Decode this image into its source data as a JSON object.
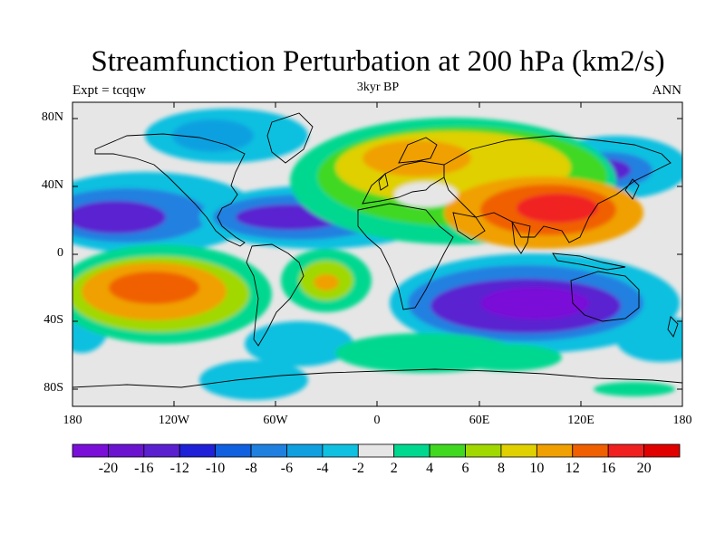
{
  "title": "Streamfunction Perturbation at 200 hPa (km2/s)",
  "subtitle_left": "Expt = tcqqw",
  "subtitle_center": "3kyr BP",
  "subtitle_right": "ANN",
  "y_ticks": [
    "80N",
    "40N",
    "0",
    "40S",
    "80S"
  ],
  "x_ticks": [
    "180",
    "120W",
    "60W",
    "0",
    "60E",
    "120E",
    "180"
  ],
  "colorbar": {
    "labels": [
      "-20",
      "-16",
      "-12",
      "-10",
      "-8",
      "-6",
      "-4",
      "-2",
      "2",
      "4",
      "6",
      "8",
      "10",
      "12",
      "16",
      "20"
    ],
    "colors": [
      "#7a10d8",
      "#6a14d0",
      "#5a20d0",
      "#2020d8",
      "#1060e0",
      "#2080e0",
      "#10a0e0",
      "#10c0e0",
      "#e6e6e6",
      "#00d890",
      "#40d820",
      "#a0d800",
      "#e0d000",
      "#f0a000",
      "#f06000",
      "#f02020",
      "#e00000"
    ]
  },
  "chart_data": {
    "type": "heatmap",
    "title": "Streamfunction Perturbation at 200 hPa (km2/s)",
    "xlabel": "",
    "ylabel": "",
    "xlim": [
      -180,
      180
    ],
    "ylim": [
      -90,
      90
    ],
    "levels": [
      -20,
      -16,
      -12,
      -10,
      -8,
      -6,
      -4,
      -2,
      2,
      4,
      6,
      8,
      10,
      12,
      16,
      20
    ],
    "features": [
      {
        "lon": -150,
        "lat": 22,
        "value": -14
      },
      {
        "lon": -55,
        "lat": 22,
        "value": -12
      },
      {
        "lon": 140,
        "lat": 50,
        "value": -12
      },
      {
        "lon": 100,
        "lat": -30,
        "value": -16
      },
      {
        "lon": -130,
        "lat": -18,
        "value": 16
      },
      {
        "lon": -30,
        "lat": -15,
        "value": 8
      },
      {
        "lon": 100,
        "lat": 25,
        "value": 18
      },
      {
        "lon": 20,
        "lat": 55,
        "value": 8
      },
      {
        "lon": 40,
        "lat": -55,
        "value": 4
      }
    ]
  }
}
